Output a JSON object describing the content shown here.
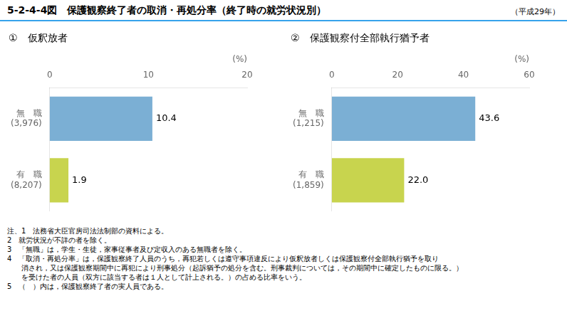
{
  "title": "5-2-4-4図　保護観察終了者の取消・再処分率（終了時の就労状況別）",
  "subtitle": "（平成29年）",
  "annotations": [
    "注、1　法務省大臣官房司法法制部の資料による。",
    "2　就労状況が不詳の者を除く。",
    "3　「無職」は，学生・生徒，家事従事者及び定収入のある無職者を除く。",
    "4　「取消・再処分率」は，保護観察終了人員のうち，再犯若しくは遵守事項違反により仮釈放者しくは保護観察付全部執行猶予を取り",
    "　　消され，又は保護観察期間中に再犯により刑事処分（起訴猶予の処分を含む。刑事裁判については，その期間中に確定したものに限る。）",
    "　　を受けた者の人員（双方に該当する者は１人として計上される。）の占める比率をいう。",
    "5　（　）内は，保護観察終了者の実人員である。"
  ],
  "chart_data": [
    {
      "type": "bar",
      "orientation": "horizontal",
      "title": "①　仮釈放者",
      "categories": [
        "無　職\n(3,976)",
        "有　職\n(8,207)"
      ],
      "values": [
        10.4,
        1.9
      ],
      "colors": [
        "#7bafd4",
        "#c8d44e"
      ],
      "xlabel": "(%)",
      "xlim": [
        0,
        20
      ],
      "xticks": [
        0,
        10,
        20
      ],
      "grid": false,
      "data_labels": true
    },
    {
      "type": "bar",
      "orientation": "horizontal",
      "title": "②　保護観察付全部執行猶予者",
      "categories": [
        "無　職\n(1,215)",
        "有　職\n(1,859)"
      ],
      "values": [
        43.6,
        22.0
      ],
      "value_labels": [
        "43.6",
        "22.0"
      ],
      "colors": [
        "#7bafd4",
        "#c8d44e"
      ],
      "xlabel": "(%)",
      "xlim": [
        0,
        60
      ],
      "xticks": [
        0,
        20,
        40,
        60
      ],
      "grid": false,
      "data_labels": true
    }
  ]
}
